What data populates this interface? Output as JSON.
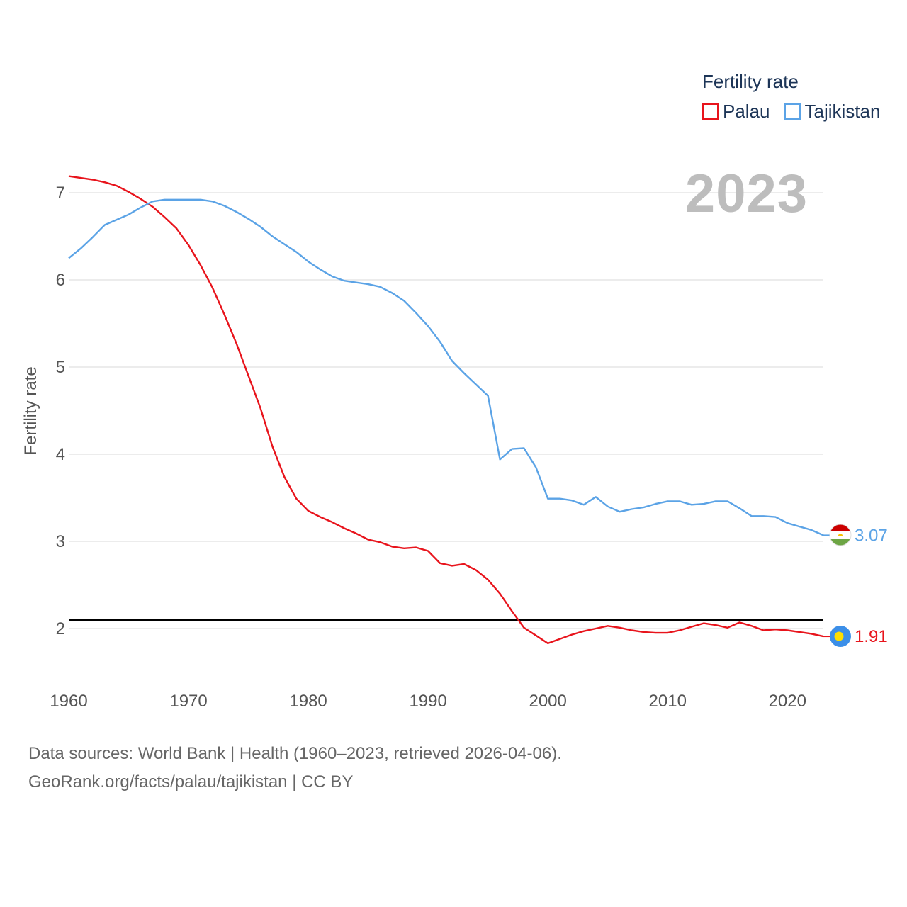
{
  "legend": {
    "title": "Fertility rate",
    "items": [
      {
        "label": "Palau",
        "color": "#e8141c"
      },
      {
        "label": "Tajikistan",
        "color": "#5ba3e6"
      }
    ]
  },
  "highlight_year": "2023",
  "source": {
    "line1": "Data sources: World Bank | Health (1960–2023, retrieved 2026-04-06).",
    "line2": "GeoRank.org/facts/palau/tajikistan | CC BY"
  },
  "chart_data": {
    "type": "line",
    "title": "Fertility rate",
    "xlabel": "",
    "ylabel": "Fertility rate",
    "xlim": [
      1960,
      2023
    ],
    "ylim": [
      1.5,
      7.4
    ],
    "xticks": [
      1960,
      1970,
      1980,
      1990,
      2000,
      2010,
      2020
    ],
    "yticks": [
      2,
      3,
      4,
      5,
      6,
      7
    ],
    "grid": true,
    "legend_position": "top-right",
    "reference_line": {
      "y": 2.1,
      "color": "#000000"
    },
    "x": [
      1960,
      1961,
      1962,
      1963,
      1964,
      1965,
      1966,
      1967,
      1968,
      1969,
      1970,
      1971,
      1972,
      1973,
      1974,
      1975,
      1976,
      1977,
      1978,
      1979,
      1980,
      1981,
      1982,
      1983,
      1984,
      1985,
      1986,
      1987,
      1988,
      1989,
      1990,
      1991,
      1992,
      1993,
      1994,
      1995,
      1996,
      1997,
      1998,
      1999,
      2000,
      2001,
      2002,
      2003,
      2004,
      2005,
      2006,
      2007,
      2008,
      2009,
      2010,
      2011,
      2012,
      2013,
      2014,
      2015,
      2016,
      2017,
      2018,
      2019,
      2020,
      2021,
      2022,
      2023
    ],
    "series": [
      {
        "name": "Palau",
        "color": "#e8141c",
        "end_label": "1.91",
        "values": [
          7.19,
          7.17,
          7.15,
          7.12,
          7.08,
          7.01,
          6.93,
          6.84,
          6.72,
          6.59,
          6.4,
          6.17,
          5.91,
          5.6,
          5.27,
          4.9,
          4.53,
          4.09,
          3.74,
          3.49,
          3.35,
          3.28,
          3.22,
          3.15,
          3.09,
          3.02,
          2.99,
          2.94,
          2.92,
          2.93,
          2.89,
          2.75,
          2.72,
          2.74,
          2.67,
          2.56,
          2.4,
          2.2,
          2.01,
          1.92,
          1.83,
          1.88,
          1.93,
          1.97,
          2.0,
          2.03,
          2.01,
          1.98,
          1.96,
          1.95,
          1.95,
          1.98,
          2.02,
          2.06,
          2.04,
          2.01,
          2.07,
          2.03,
          1.98,
          1.99,
          1.98,
          1.96,
          1.94,
          1.91
        ]
      },
      {
        "name": "Tajikistan",
        "color": "#5ba3e6",
        "end_label": "3.07",
        "values": [
          6.25,
          6.36,
          6.49,
          6.63,
          6.69,
          6.75,
          6.83,
          6.9,
          6.92,
          6.92,
          6.92,
          6.92,
          6.9,
          6.85,
          6.78,
          6.7,
          6.61,
          6.5,
          6.41,
          6.32,
          6.21,
          6.12,
          6.04,
          5.99,
          5.97,
          5.95,
          5.92,
          5.85,
          5.76,
          5.62,
          5.47,
          5.29,
          5.07,
          4.93,
          4.8,
          4.67,
          3.94,
          4.06,
          4.07,
          3.85,
          3.49,
          3.49,
          3.47,
          3.42,
          3.51,
          3.4,
          3.34,
          3.37,
          3.39,
          3.43,
          3.46,
          3.46,
          3.42,
          3.43,
          3.46,
          3.46,
          3.38,
          3.29,
          3.29,
          3.28,
          3.21,
          3.17,
          3.13,
          3.07
        ]
      }
    ]
  }
}
